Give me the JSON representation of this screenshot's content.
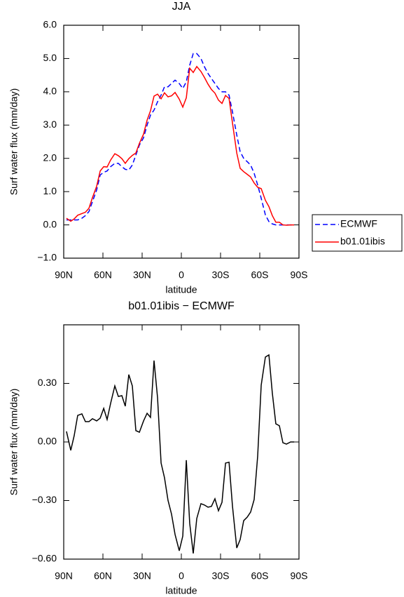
{
  "chart_data": [
    {
      "type": "line",
      "title": "JJA",
      "xlabel": "latitude",
      "ylabel": "Surf water flux (mm/day)",
      "x": [
        87.9,
        84.6,
        82.0,
        79.3,
        76.1,
        73.4,
        70.7,
        68.0,
        64.8,
        62.1,
        59.4,
        56.8,
        54.1,
        50.9,
        48.2,
        45.5,
        42.9,
        40.2,
        37.5,
        34.8,
        32.1,
        28.9,
        26.2,
        23.6,
        20.9,
        18.2,
        15.5,
        12.9,
        10.2,
        7.5,
        4.8,
        1.6,
        -1.1,
        -3.8,
        -6.4,
        -9.1,
        -11.8,
        -15.0,
        -17.7,
        -20.4,
        -23.0,
        -25.7,
        -28.4,
        -31.1,
        -33.8,
        -36.5,
        -39.1,
        -42.4,
        -45.0,
        -47.7,
        -50.4,
        -53.0,
        -55.7,
        -58.4,
        -61.1,
        -64.3,
        -67.0,
        -69.6,
        -72.3,
        -75.0,
        -77.7,
        -80.4,
        -83.6,
        -86.3
      ],
      "series": [
        {
          "name": "ECMWF",
          "color": "#0000ff",
          "linestyle": "dashed",
          "values": [
            0.15,
            0.15,
            0.15,
            0.15,
            0.2,
            0.28,
            0.4,
            0.7,
            1.05,
            1.5,
            1.58,
            1.62,
            1.75,
            1.85,
            1.85,
            1.75,
            1.67,
            1.65,
            1.8,
            2.1,
            2.4,
            2.62,
            3.0,
            3.3,
            3.45,
            3.7,
            3.9,
            4.15,
            4.15,
            4.25,
            4.35,
            4.25,
            4.1,
            4.3,
            4.8,
            5.15,
            5.15,
            5.0,
            4.75,
            4.55,
            4.4,
            4.25,
            4.1,
            4.0,
            4.0,
            3.9,
            3.4,
            2.7,
            2.2,
            2.0,
            1.9,
            1.8,
            1.55,
            1.2,
            0.8,
            0.3,
            0.1,
            0.03,
            0.0,
            0.0,
            0.0,
            0.0,
            0.0,
            0.0
          ]
        },
        {
          "name": "b01.01ibis",
          "color": "#ff0000",
          "linestyle": "solid",
          "values": [
            0.2,
            0.11,
            0.18,
            0.29,
            0.34,
            0.38,
            0.5,
            0.82,
            1.16,
            1.62,
            1.75,
            1.74,
            1.95,
            2.14,
            2.08,
            1.99,
            1.85,
            1.99,
            2.09,
            2.16,
            2.45,
            2.73,
            3.15,
            3.43,
            3.87,
            3.93,
            3.79,
            3.97,
            3.85,
            3.88,
            3.98,
            3.78,
            3.54,
            3.82,
            4.71,
            4.58,
            4.76,
            4.61,
            4.43,
            4.23,
            4.07,
            3.96,
            3.75,
            3.65,
            3.89,
            3.8,
            3.07,
            2.16,
            1.7,
            1.6,
            1.52,
            1.44,
            1.26,
            1.13,
            1.09,
            0.74,
            0.55,
            0.28,
            0.08,
            0.08,
            0.0,
            -0.01,
            0.0,
            0.0
          ]
        }
      ],
      "xlim": [
        90,
        -90
      ],
      "xticks": [
        {
          "value": 90,
          "label": "90N"
        },
        {
          "value": 60,
          "label": "60N"
        },
        {
          "value": 30,
          "label": "30N"
        },
        0,
        {
          "value": -30,
          "label": "30S"
        },
        {
          "value": -60,
          "label": "60S"
        },
        {
          "value": -90,
          "label": "90S"
        }
      ],
      "ylim": [
        -1,
        6
      ],
      "yticks": [
        {
          "value": -1,
          "label": "−1.0"
        },
        {
          "value": 0,
          "label": "0.0"
        },
        {
          "value": 1,
          "label": "1.0"
        },
        {
          "value": 2,
          "label": "2.0"
        },
        {
          "value": 3,
          "label": "3.0"
        },
        {
          "value": 4,
          "label": "4.0"
        },
        {
          "value": 5,
          "label": "5.0"
        },
        {
          "value": 6,
          "label": "6.0"
        }
      ],
      "legend": "right"
    },
    {
      "type": "line",
      "title": "b01.01ibis − ECMWF",
      "xlabel": "latitude",
      "ylabel": "Surf water flux (mm/day)",
      "x": [
        87.9,
        84.6,
        82.0,
        79.3,
        76.1,
        73.4,
        70.7,
        68.0,
        64.8,
        62.1,
        59.4,
        56.8,
        54.1,
        50.9,
        48.2,
        45.5,
        42.9,
        40.2,
        37.5,
        34.8,
        32.1,
        28.9,
        26.2,
        23.6,
        20.9,
        18.2,
        15.5,
        12.9,
        10.2,
        7.5,
        4.8,
        1.6,
        -1.1,
        -3.8,
        -6.4,
        -9.1,
        -11.8,
        -15.0,
        -17.7,
        -20.4,
        -23.0,
        -25.7,
        -28.4,
        -31.1,
        -33.8,
        -36.5,
        -39.1,
        -42.4,
        -45.0,
        -47.7,
        -50.4,
        -53.0,
        -55.7,
        -58.4,
        -61.1,
        -64.3,
        -67.0,
        -69.6,
        -72.3,
        -75.0,
        -77.7,
        -80.4,
        -83.6,
        -86.3
      ],
      "values": [
        0.054,
        -0.043,
        0.032,
        0.136,
        0.144,
        0.104,
        0.104,
        0.119,
        0.108,
        0.122,
        0.172,
        0.115,
        0.198,
        0.287,
        0.233,
        0.237,
        0.183,
        0.345,
        0.287,
        0.058,
        0.05,
        0.108,
        0.147,
        0.126,
        0.417,
        0.226,
        -0.108,
        -0.183,
        -0.299,
        -0.37,
        -0.474,
        -0.557,
        -0.482,
        -0.093,
        -0.417,
        -0.571,
        -0.392,
        -0.316,
        -0.323,
        -0.334,
        -0.33,
        -0.291,
        -0.352,
        -0.309,
        -0.108,
        -0.104,
        -0.327,
        -0.543,
        -0.5,
        -0.403,
        -0.385,
        -0.359,
        -0.295,
        -0.072,
        0.291,
        0.435,
        0.446,
        0.251,
        0.093,
        0.083,
        -0.004,
        -0.011,
        0.0,
        0.0
      ],
      "color": "#000000",
      "xlim": [
        90,
        -90
      ],
      "xticks": [
        {
          "value": 90,
          "label": "90N"
        },
        {
          "value": 60,
          "label": "60N"
        },
        {
          "value": 30,
          "label": "30N"
        },
        0,
        {
          "value": -30,
          "label": "30S"
        },
        {
          "value": -60,
          "label": "60S"
        },
        {
          "value": -90,
          "label": "90S"
        }
      ],
      "ylim": [
        -0.6,
        0.6
      ],
      "yticks": [
        {
          "value": -0.6,
          "label": "−0.60"
        },
        {
          "value": -0.3,
          "label": "−0.30"
        },
        {
          "value": 0,
          "label": "0.00"
        },
        {
          "value": 0.3,
          "label": "0.30"
        }
      ]
    }
  ]
}
